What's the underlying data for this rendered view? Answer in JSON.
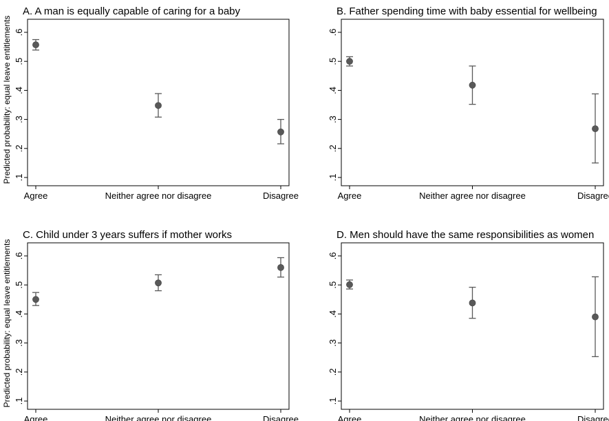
{
  "figure": {
    "y_axis_label": "Predicted probability: equal leave entitlements",
    "marker_color": "#595959",
    "error_bar_color": "#595959"
  },
  "chart_data": [
    {
      "type": "scatter",
      "title": "A. A man is equally capable of caring for a baby",
      "categories": [
        "Agree",
        "Neither agree nor disagree",
        "Disagree"
      ],
      "ylabel": "Predicted probability: equal leave entitlements",
      "yticks": [
        ".1",
        ".2",
        ".3",
        ".4",
        ".5",
        ".6"
      ],
      "ylim": [
        0.1,
        0.6
      ],
      "series": [
        {
          "values": [
            0.557,
            0.348,
            0.257
          ],
          "ci_low": [
            0.539,
            0.308,
            0.216
          ],
          "ci_high": [
            0.575,
            0.389,
            0.3
          ]
        }
      ]
    },
    {
      "type": "scatter",
      "title": "B. Father spending time with baby essential for wellbeing",
      "categories": [
        "Agree",
        "Neither agree nor disagree",
        "Disagree"
      ],
      "ylabel": "",
      "yticks": [
        ".1",
        ".2",
        ".3",
        ".4",
        ".5",
        ".6"
      ],
      "ylim": [
        0.1,
        0.6
      ],
      "series": [
        {
          "values": [
            0.5,
            0.418,
            0.268
          ],
          "ci_low": [
            0.484,
            0.352,
            0.15
          ],
          "ci_high": [
            0.516,
            0.484,
            0.388
          ]
        }
      ]
    },
    {
      "type": "scatter",
      "title": "C. Child under 3 years suffers if mother works",
      "categories": [
        "Agree",
        "Neither agree nor disagree",
        "Disagree"
      ],
      "ylabel": "Predicted probability: equal leave entitlements",
      "yticks": [
        ".1",
        ".2",
        ".3",
        ".4",
        ".5",
        ".6"
      ],
      "ylim": [
        0.1,
        0.6
      ],
      "series": [
        {
          "values": [
            0.45,
            0.507,
            0.56
          ],
          "ci_low": [
            0.429,
            0.48,
            0.527
          ],
          "ci_high": [
            0.474,
            0.535,
            0.594
          ]
        }
      ]
    },
    {
      "type": "scatter",
      "title": "D. Men should have the same responsibilities as women",
      "categories": [
        "Agree",
        "Neither agree nor disagree",
        "Disagree"
      ],
      "ylabel": "",
      "yticks": [
        ".1",
        ".2",
        ".3",
        ".4",
        ".5",
        ".6"
      ],
      "ylim": [
        0.1,
        0.6
      ],
      "series": [
        {
          "values": [
            0.501,
            0.438,
            0.39
          ],
          "ci_low": [
            0.486,
            0.385,
            0.253
          ],
          "ci_high": [
            0.517,
            0.492,
            0.528
          ]
        }
      ]
    }
  ]
}
